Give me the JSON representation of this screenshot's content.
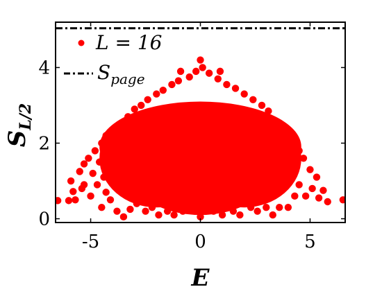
{
  "chart_data": {
    "type": "scatter",
    "xlabel": "E",
    "ylabel_main": "S",
    "ylabel_sub": "L/2",
    "xlim": [
      -6.6,
      6.6
    ],
    "ylim": [
      -0.1,
      5.2
    ],
    "xticks": [
      -5,
      0,
      5
    ],
    "xtick_labels": [
      "-5",
      "0",
      "5"
    ],
    "yticks": [
      0,
      2,
      4
    ],
    "ytick_labels": [
      "0",
      "2",
      "4"
    ],
    "grid": false,
    "legend_position": "top-left",
    "legend": {
      "series_label": "L = 16",
      "reference_label_main": "S",
      "reference_label_sub": "page"
    },
    "series": [
      {
        "kind": "scatter",
        "color": "#ff0000",
        "points": [
          [
            -6.5,
            0.48
          ],
          [
            -6.0,
            0.48
          ],
          [
            -5.9,
            1.0
          ],
          [
            -5.8,
            0.72
          ],
          [
            -5.7,
            0.5
          ],
          [
            -5.5,
            1.25
          ],
          [
            -5.4,
            0.8
          ],
          [
            -5.3,
            1.45
          ],
          [
            -5.3,
            0.9
          ],
          [
            -5.1,
            1.6
          ],
          [
            -5.0,
            0.6
          ],
          [
            -4.9,
            1.2
          ],
          [
            -4.8,
            1.8
          ],
          [
            -4.7,
            0.9
          ],
          [
            -4.6,
            1.5
          ],
          [
            -4.5,
            0.3
          ],
          [
            -4.5,
            2.0
          ],
          [
            -4.4,
            1.1
          ],
          [
            -4.3,
            0.7
          ],
          [
            -4.3,
            2.2
          ],
          [
            -4.2,
            1.4
          ],
          [
            -4.1,
            0.5
          ],
          [
            -4.0,
            2.3
          ],
          [
            -3.9,
            1.0
          ],
          [
            -3.8,
            0.2
          ],
          [
            -3.7,
            2.5
          ],
          [
            -3.6,
            0.8
          ],
          [
            -3.5,
            0.05
          ],
          [
            -3.5,
            1.3
          ],
          [
            -3.3,
            2.7
          ],
          [
            -3.2,
            0.25
          ],
          [
            -3.0,
            2.9
          ],
          [
            -2.9,
            0.4
          ],
          [
            -2.7,
            3.0
          ],
          [
            -2.5,
            0.2
          ],
          [
            -2.4,
            3.15
          ],
          [
            -2.2,
            0.3
          ],
          [
            -2.0,
            3.3
          ],
          [
            -1.9,
            0.1
          ],
          [
            -1.7,
            3.4
          ],
          [
            -1.5,
            0.2
          ],
          [
            -1.3,
            3.55
          ],
          [
            -1.2,
            0.1
          ],
          [
            -1.0,
            3.65
          ],
          [
            -0.9,
            3.9
          ],
          [
            -0.8,
            0.2
          ],
          [
            -0.5,
            3.75
          ],
          [
            -0.4,
            0.3
          ],
          [
            -0.2,
            3.9
          ],
          [
            0.0,
            4.2
          ],
          [
            0.0,
            0.05
          ],
          [
            0.1,
            4.0
          ],
          [
            0.2,
            0.3
          ],
          [
            0.4,
            3.85
          ],
          [
            0.6,
            0.2
          ],
          [
            0.8,
            3.7
          ],
          [
            0.9,
            3.9
          ],
          [
            1.0,
            0.1
          ],
          [
            1.2,
            3.55
          ],
          [
            1.5,
            0.2
          ],
          [
            1.6,
            3.45
          ],
          [
            1.8,
            0.1
          ],
          [
            2.0,
            3.3
          ],
          [
            2.3,
            0.3
          ],
          [
            2.4,
            3.15
          ],
          [
            2.6,
            0.2
          ],
          [
            2.8,
            3.0
          ],
          [
            3.0,
            0.3
          ],
          [
            3.1,
            2.85
          ],
          [
            3.3,
            0.1
          ],
          [
            3.4,
            2.6
          ],
          [
            3.6,
            0.3
          ],
          [
            3.7,
            2.45
          ],
          [
            3.8,
            1.0
          ],
          [
            4.0,
            2.3
          ],
          [
            4.0,
            0.3
          ],
          [
            4.2,
            1.4
          ],
          [
            4.3,
            2.1
          ],
          [
            4.3,
            0.6
          ],
          [
            4.5,
            1.8
          ],
          [
            4.5,
            0.9
          ],
          [
            4.7,
            1.6
          ],
          [
            4.8,
            0.6
          ],
          [
            5.0,
            1.3
          ],
          [
            5.1,
            0.8
          ],
          [
            5.3,
            1.1
          ],
          [
            5.4,
            0.55
          ],
          [
            5.6,
            0.75
          ],
          [
            5.8,
            0.45
          ],
          [
            6.5,
            0.5
          ]
        ],
        "clusters": [
          {
            "cx": 0.0,
            "cy": 1.9,
            "rx": 4.6,
            "ry": 1.2
          },
          {
            "cx": -2.0,
            "cy": 1.6,
            "rx": 2.6,
            "ry": 1.3
          },
          {
            "cx": 2.0,
            "cy": 1.6,
            "rx": 2.6,
            "ry": 1.3
          },
          {
            "cx": 0.0,
            "cy": 1.4,
            "rx": 3.4,
            "ry": 1.3
          }
        ]
      },
      {
        "kind": "hline",
        "y": 5.04,
        "color": "#000000",
        "dash": "dashdot"
      }
    ]
  }
}
